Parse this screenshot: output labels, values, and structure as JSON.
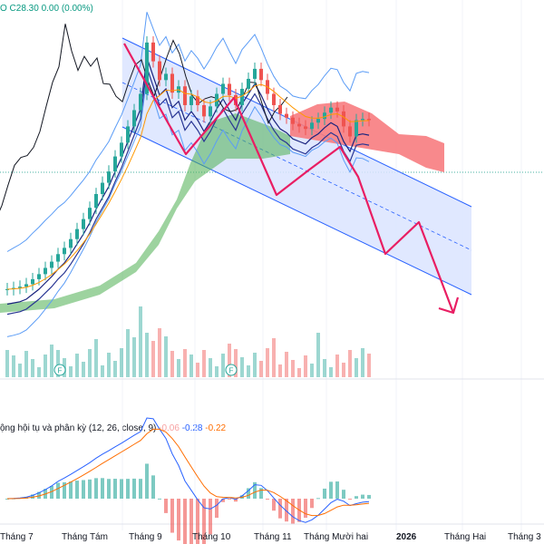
{
  "header": {
    "ohlc_text": "O C28.30 0.00 (0.00%)"
  },
  "colors": {
    "up": "#26a69a",
    "down": "#ef5350",
    "price_line": "#131722",
    "channel": "#2962ff",
    "channel_fill": "#dbe4ff",
    "arrow": "#e91e63",
    "cloud_bear": "#f77c80",
    "cloud_bull": "#4caf50",
    "macd": "#2962ff",
    "signal": "#ff6d00"
  },
  "macd": {
    "label": "ộng hội tụ và phân kỳ (12, 26, close, 9)",
    "hist": "-0.06",
    "macd": "-0.28",
    "signal": "-0.22"
  },
  "earnings_markers": [
    "F",
    "F"
  ],
  "chart_data": {
    "type": "line",
    "title": "",
    "x_labels": [
      "Tháng 7",
      "Tháng Tám",
      "Tháng 9",
      "Tháng 10",
      "Tháng 11",
      "Tháng Mười hai",
      "2026",
      "Tháng Hai",
      "Tháng 3"
    ],
    "series": [
      {
        "values": [
          14.8,
          14.9,
          15.0,
          15.2,
          15.6,
          16.0,
          16.5,
          17.0,
          17.6,
          18.1,
          18.8,
          19.6,
          20.4,
          21.3,
          22.4,
          23.3,
          24.2,
          25.4,
          26.5,
          27.8,
          29.1,
          30.4,
          34.5,
          33.0,
          31.5,
          32.0,
          30.5,
          31.0,
          29.5,
          30.2,
          29.5,
          28.6,
          29.4,
          30.4,
          31.2,
          30.3,
          29.5,
          30.8,
          31.6,
          32.4,
          31.5,
          30.4,
          29.5,
          28.8,
          28.5,
          28.0,
          27.8,
          27.6,
          28.1,
          28.4,
          28.9,
          29.3,
          29.0,
          27.8,
          27.0,
          28.3,
          28.4,
          28.3
        ]
      }
    ],
    "macd_panel": {
      "label": "ộng hội tụ và phân kỳ (12, 26, close, 9)",
      "hist_value": -0.06,
      "macd_value": -0.28,
      "signal_value": -0.22
    }
  }
}
